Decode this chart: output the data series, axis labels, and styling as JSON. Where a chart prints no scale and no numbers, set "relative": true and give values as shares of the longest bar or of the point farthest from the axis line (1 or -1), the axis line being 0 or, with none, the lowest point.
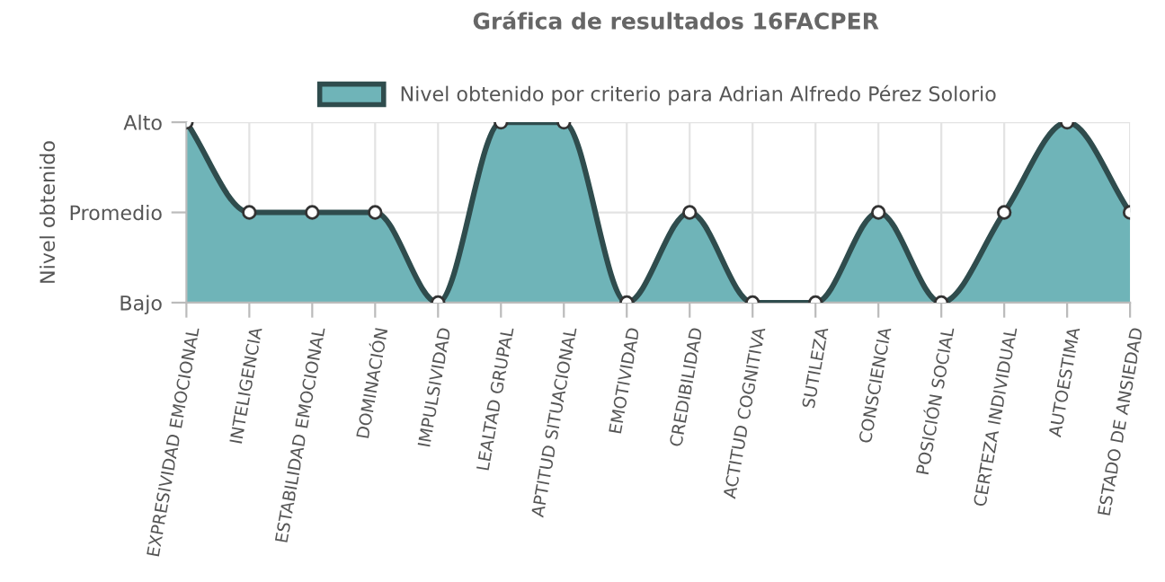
{
  "chart_data": {
    "type": "area",
    "title": "Gráfica de resultados 16FACPER",
    "ylabel": "Nivel obtenido",
    "categories": [
      "EXPRESIVIDAD EMOCIONAL",
      "INTELIGENCIA",
      "ESTABILIDAD EMOCIONAL",
      "DOMINACIÓN",
      "IMPULSIVIDAD",
      "LEALTAD GRUPAL",
      "APTITUD SITUACIONAL",
      "EMOTIVIDAD",
      "CREDIBILIDAD",
      "ACTITUD COGNITIVA",
      "SUTILEZA",
      "CONSCIENCIA",
      "POSICIÓN SOCIAL",
      "CERTEZA INDIVIDUAL",
      "AUTOESTIMA",
      "ESTADO DE ANSIEDAD"
    ],
    "series": [
      {
        "name": "Nivel obtenido por criterio para Adrian Alfredo Pérez Solorio",
        "color": "#6fb4b8",
        "values": [
          1,
          0.5,
          0.5,
          0.5,
          0,
          1,
          1,
          0,
          0.5,
          0,
          0,
          0.5,
          0,
          0.5,
          1,
          0.5
        ]
      }
    ],
    "relative": true,
    "y_categories": [
      "Alto",
      "Promedio",
      "Bajo"
    ],
    "grid": true,
    "legend": "top",
    "marker": "circle",
    "line_style": "solid"
  }
}
